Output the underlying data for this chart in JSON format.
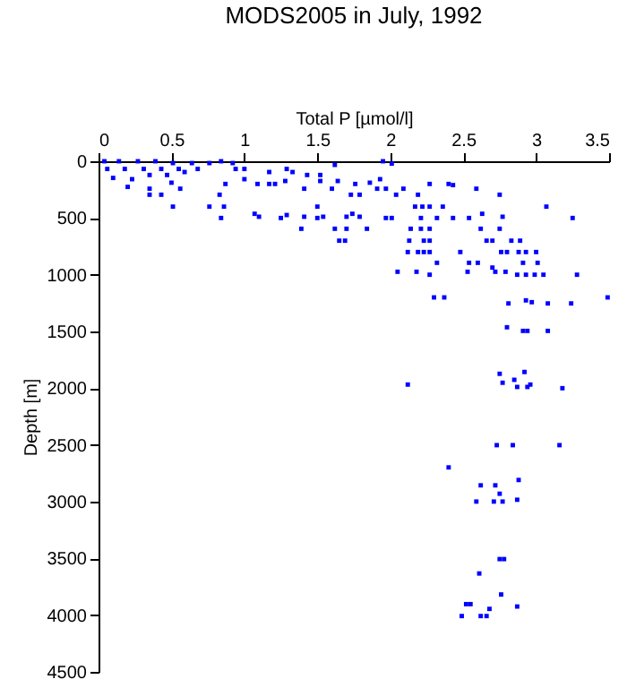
{
  "chart_data": {
    "type": "scatter",
    "title": "MODS2005 in July, 1992",
    "xlabel": "Total P [µmol/l]",
    "ylabel": "Depth [m]",
    "xlim": [
      0,
      3.5
    ],
    "xticks": [
      0,
      0.5,
      1,
      1.5,
      2,
      2.5,
      3,
      3.5
    ],
    "ylim": [
      4500,
      0
    ],
    "yticks": [
      0,
      500,
      1000,
      1500,
      2000,
      2500,
      3000,
      3500,
      4000,
      4500
    ],
    "grid": false,
    "marker": "square",
    "series": [
      {
        "color": "#0000ff",
        "x": [
          0.04,
          0.14,
          0.27,
          0.39,
          0.51,
          0.64,
          0.76,
          0.84,
          0.92,
          0.06,
          0.18,
          0.31,
          0.43,
          0.55,
          0.68,
          1.0,
          0.1,
          0.23,
          0.35,
          0.47,
          0.59,
          0.2,
          0.35,
          0.5,
          0.56,
          0.35,
          0.43,
          0.51,
          0.76,
          0.86,
          0.83,
          0.84,
          0.87,
          0.94,
          1.0,
          1.09,
          1.17,
          1.21,
          1.17,
          1.29,
          1.33,
          1.43,
          1.52,
          1.62,
          1.28,
          1.41,
          1.52,
          1.6,
          1.64,
          1.07,
          1.1,
          1.25,
          1.29,
          1.39,
          1.41,
          1.5,
          1.54,
          1.5,
          1.7,
          1.74,
          1.79,
          1.73,
          1.79,
          1.76,
          1.86,
          1.93,
          1.91,
          1.97,
          1.95,
          2.01,
          1.62,
          1.7,
          1.65,
          1.69,
          1.84,
          1.97,
          2.01,
          2.04,
          2.09,
          2.19,
          2.17,
          2.22,
          2.27,
          2.36,
          2.27,
          2.4,
          2.43,
          2.59,
          2.75,
          3.07,
          2.63,
          2.77,
          3.25,
          2.32,
          2.43,
          2.54,
          2.21,
          2.14,
          2.21,
          2.27,
          2.62,
          2.75,
          2.13,
          2.23,
          2.27,
          2.66,
          2.7,
          2.83,
          2.89,
          2.12,
          2.19,
          2.23,
          2.27,
          2.48,
          2.76,
          2.8,
          2.88,
          2.93,
          3.0,
          2.32,
          2.54,
          2.6,
          2.7,
          2.91,
          3.01,
          2.05,
          2.18,
          2.27,
          2.53,
          2.72,
          2.79,
          2.87,
          2.93,
          2.99,
          3.05,
          3.28,
          2.3,
          2.37,
          2.81,
          2.93,
          2.97,
          3.08,
          3.24,
          3.49,
          2.8,
          2.91,
          2.94,
          3.08,
          2.12,
          2.75,
          2.92,
          2.77,
          2.85,
          2.87,
          2.96,
          2.94,
          3.18,
          2.73,
          2.84,
          3.16,
          2.4,
          2.62,
          2.72,
          2.88,
          2.75,
          2.59,
          2.71,
          2.77,
          2.87,
          2.75,
          2.78,
          2.61,
          2.76,
          2.87,
          2.52,
          2.55,
          2.68,
          2.49,
          2.62,
          2.66
        ],
        "values": [
          0,
          0,
          0,
          0,
          16,
          16,
          16,
          0,
          16,
          68,
          68,
          68,
          68,
          68,
          68,
          68,
          147,
          158,
          121,
          121,
          95,
          226,
          242,
          189,
          242,
          295,
          295,
          400,
          400,
          400,
          295,
          500,
          200,
          68,
          158,
          200,
          200,
          200,
          95,
          68,
          95,
          121,
          121,
          32,
          174,
          242,
          174,
          242,
          174,
          463,
          489,
          500,
          474,
          595,
          489,
          500,
          489,
          400,
          489,
          463,
          489,
          295,
          295,
          200,
          189,
          158,
          242,
          242,
          0,
          21,
          595,
          595,
          700,
          700,
          595,
          500,
          500,
          295,
          242,
          295,
          400,
          400,
          400,
          400,
          200,
          200,
          210,
          242,
          295,
          400,
          463,
          489,
          500,
          500,
          500,
          500,
          500,
          595,
          595,
          595,
          595,
          595,
          700,
          700,
          700,
          700,
          700,
          700,
          700,
          800,
          800,
          800,
          800,
          800,
          800,
          800,
          800,
          800,
          800,
          895,
          895,
          895,
          937,
          895,
          895,
          974,
          974,
          1000,
          974,
          974,
          974,
          1000,
          1000,
          1000,
          1000,
          1000,
          1200,
          1200,
          1253,
          1226,
          1242,
          1253,
          1253,
          1200,
          1463,
          1495,
          1495,
          1495,
          1968,
          1873,
          1857,
          1952,
          1926,
          1989,
          1968,
          1989,
          2000,
          2502,
          2502,
          2502,
          2698,
          2856,
          2856,
          2809,
          2930,
          2999,
          2999,
          2999,
          2983,
          3506,
          3506,
          3633,
          3818,
          3924,
          3903,
          3903,
          3945,
          4008,
          4008,
          4008
        ]
      }
    ]
  }
}
